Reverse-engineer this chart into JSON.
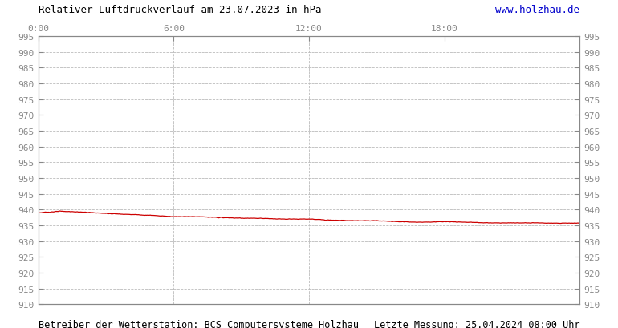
{
  "title_left": "Relativer Luftdruckverlauf am 23.07.2023 in hPa",
  "title_right": "www.holzhau.de",
  "title_right_color": "#0000cc",
  "footer_left": "Betreiber der Wetterstation: BCS Computersysteme Holzhau",
  "footer_right": "Letzte Messung: 25.04.2024 08:00 Uhr",
  "background_color": "#ffffff",
  "plot_background_color": "#ffffff",
  "line_color": "#cc0000",
  "grid_color": "#bbbbbb",
  "text_color": "#888888",
  "tick_color": "#888888",
  "border_color": "#888888",
  "ylim": [
    910,
    995
  ],
  "ytick_step": 5,
  "xlim": [
    0,
    1440
  ],
  "xtick_positions": [
    0,
    360,
    720,
    1080
  ],
  "xtick_labels": [
    "0:00",
    "6:00",
    "12:00",
    "18:00"
  ],
  "pressure_points_x": [
    0,
    60,
    120,
    180,
    240,
    300,
    360,
    420,
    480,
    540,
    600,
    660,
    720,
    780,
    840,
    900,
    960,
    1020,
    1080,
    1140,
    1200,
    1260,
    1320,
    1380,
    1440
  ],
  "pressure_points_y": [
    939.0,
    939.5,
    939.2,
    938.8,
    938.5,
    938.2,
    937.8,
    937.8,
    937.5,
    937.3,
    937.2,
    937.0,
    937.0,
    936.7,
    936.5,
    936.5,
    936.2,
    936.0,
    936.2,
    936.0,
    935.8,
    935.8,
    935.8,
    935.7,
    935.7
  ]
}
